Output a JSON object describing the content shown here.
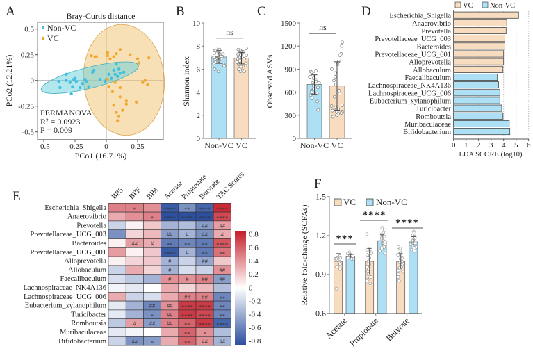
{
  "panels": {
    "A": "A",
    "B": "B",
    "C": "C",
    "D": "D",
    "E": "E",
    "F": "F"
  },
  "colors": {
    "non_vc_point": "#3fc0e0",
    "vc_point": "#f0a830",
    "non_vc_bar": "#aee0f5",
    "vc_bar": "#f8dcc0",
    "heat_neg": "#2c4f9e",
    "heat_zero": "#ffffff",
    "heat_pos": "#c41e2a"
  },
  "chart_data": [
    {
      "panel": "A",
      "type": "scatter",
      "title": "Bray-Curtis distance",
      "xlabel": "PCo1 (16.71%)",
      "ylabel": "PCo2 (12.21%)",
      "xticks": [
        "-0.5",
        "-0.25",
        "0",
        "0.25"
      ],
      "xtick_values": [
        -0.5,
        -0.25,
        0,
        0.25
      ],
      "yticks": [
        "0.5",
        "0.25",
        "0",
        "-0.25",
        "-0.5"
      ],
      "ytick_values": [
        0.5,
        0.25,
        0,
        -0.25,
        -0.5
      ],
      "xlim": [
        -0.55,
        0.46
      ],
      "ylim": [
        -0.57,
        0.56
      ],
      "legend": "top-left",
      "series": [
        {
          "name": "Non-VC",
          "points": [
            [
              -0.38,
              -0.01
            ],
            [
              -0.37,
              -0.07
            ],
            [
              -0.32,
              0.06
            ],
            [
              -0.32,
              0.0
            ],
            [
              -0.29,
              -0.02
            ],
            [
              -0.26,
              0.01
            ],
            [
              -0.25,
              0.02
            ],
            [
              -0.24,
              -0.01
            ],
            [
              -0.27,
              -0.06
            ],
            [
              -0.28,
              -0.13
            ],
            [
              -0.21,
              -0.07
            ],
            [
              -0.19,
              -0.03
            ],
            [
              -0.17,
              0.01
            ],
            [
              -0.16,
              -0.01
            ],
            [
              -0.14,
              -0.06
            ],
            [
              -0.11,
              0.08
            ],
            [
              -0.1,
              0.1
            ],
            [
              -0.05,
              0.01
            ],
            [
              -0.01,
              -0.01
            ],
            [
              0.0,
              0.01
            ],
            [
              0.02,
              0.06
            ],
            [
              0.04,
              0.02
            ],
            [
              0.06,
              0.1
            ],
            [
              0.07,
              0.06
            ],
            [
              0.08,
              0.16
            ],
            [
              0.09,
              0.04
            ],
            [
              0.1,
              0.11
            ],
            [
              0.11,
              0.07
            ],
            [
              0.14,
              0.08
            ]
          ]
        },
        {
          "name": "VC",
          "points": [
            [
              -0.12,
              0.24
            ],
            [
              -0.09,
              0.23
            ],
            [
              -0.08,
              0.23
            ],
            [
              0.01,
              0.27
            ],
            [
              0.01,
              0.24
            ],
            [
              0.03,
              0.21
            ],
            [
              0.06,
              0.23
            ],
            [
              0.08,
              0.26
            ],
            [
              0.11,
              0.3
            ],
            [
              0.19,
              0.25
            ],
            [
              0.25,
              0.21
            ],
            [
              0.26,
              0.17
            ],
            [
              0.34,
              0.22
            ],
            [
              0.01,
              0.01
            ],
            [
              0.02,
              -0.06
            ],
            [
              0.05,
              -0.11
            ],
            [
              0.07,
              -0.02
            ],
            [
              0.11,
              -0.07
            ],
            [
              0.11,
              -0.16
            ],
            [
              0.16,
              -0.2
            ],
            [
              0.16,
              -0.23
            ],
            [
              0.13,
              -0.29
            ],
            [
              0.06,
              -0.24
            ],
            [
              0.08,
              -0.31
            ],
            [
              0.1,
              -0.35
            ],
            [
              0.09,
              -0.39
            ],
            [
              0.24,
              -0.21
            ],
            [
              0.29,
              -0.02
            ],
            [
              0.31,
              0.0
            ],
            [
              0.33,
              -0.04
            ]
          ]
        }
      ],
      "annotation": {
        "title": "PERMANOVA",
        "r2": "R² = 0.0923",
        "p": "P = 0.009"
      }
    },
    {
      "panel": "B",
      "type": "bar",
      "ylabel": "Shannon index",
      "categories": [
        "Non-VC",
        "VC"
      ],
      "ylim": [
        0,
        10
      ],
      "yticks": [
        "0",
        "2",
        "4",
        "6",
        "8",
        "10"
      ],
      "ytick_values": [
        0,
        2,
        4,
        6,
        8,
        10
      ],
      "means": [
        7.05,
        6.95
      ],
      "sd": [
        0.55,
        0.5
      ],
      "points": [
        [
          7.8,
          7.7,
          7.6,
          7.6,
          7.5,
          7.5,
          7.4,
          7.3,
          7.3,
          7.2,
          7.2,
          7.1,
          7.1,
          7.0,
          7.0,
          6.9,
          6.9,
          6.8,
          6.8,
          6.7,
          6.6,
          6.5,
          6.4,
          6.3,
          6.0,
          5.8
        ],
        [
          7.8,
          7.7,
          7.6,
          7.5,
          7.5,
          7.4,
          7.3,
          7.2,
          7.2,
          7.1,
          7.0,
          7.0,
          6.9,
          6.9,
          6.8,
          6.7,
          6.6,
          6.5,
          6.4,
          6.3,
          6.2,
          6.0,
          5.9,
          5.8,
          5.8
        ]
      ],
      "significance": "ns"
    },
    {
      "panel": "C",
      "type": "bar",
      "ylabel": "Observed ASVs",
      "categories": [
        "Non-VC",
        "VC"
      ],
      "ylim": [
        0,
        1500
      ],
      "yticks": [
        "0",
        "300",
        "600",
        "900",
        "1200",
        "1500"
      ],
      "ytick_values": [
        0,
        300,
        600,
        900,
        1200,
        1500
      ],
      "means": [
        700,
        680
      ],
      "sd": [
        125,
        315
      ],
      "points": [
        [
          880,
          870,
          860,
          840,
          820,
          800,
          780,
          760,
          740,
          720,
          720,
          700,
          690,
          680,
          660,
          650,
          640,
          620,
          600,
          580,
          560,
          520,
          480,
          370
        ],
        [
          1250,
          1200,
          1100,
          1080,
          1000,
          960,
          900,
          850,
          800,
          750,
          700,
          620,
          580,
          540,
          430,
          420,
          400,
          380,
          370,
          360,
          350,
          340,
          330,
          320,
          300,
          280
        ]
      ],
      "significance": "ns"
    },
    {
      "panel": "D",
      "type": "bar",
      "orientation": "horizontal",
      "xlabel": "LDA SCORE (log10)",
      "xlim": [
        0,
        6
      ],
      "xticks": [
        "0",
        "1",
        "2",
        "3",
        "4",
        "5",
        "6"
      ],
      "legend": [
        {
          "name": "VC"
        },
        {
          "name": "Non-VC"
        }
      ],
      "categories": [
        "Escherichia_Shigella",
        "Anaerovibrio",
        "Prevotella",
        "Prevotellaceae_UCG_003",
        "Bacteroides",
        "Prevotellaceae_UCG_001",
        "Alloprevotella",
        "Allobaculum",
        "Faecalibaculum",
        "Lachnospiraceae_NK4A136",
        "Lachnospiraceae_UCG_006",
        "Eubacterium_xylanophilum",
        "Turicibacter",
        "Romboutsia",
        "Muribaculaceae",
        "Bifidobacterium"
      ],
      "values": [
        5.2,
        4.25,
        4.2,
        4.1,
        4.1,
        4.0,
        4.0,
        3.95,
        3.5,
        3.6,
        3.7,
        3.7,
        3.85,
        3.95,
        4.45,
        4.5
      ],
      "groups": [
        "VC",
        "VC",
        "VC",
        "VC",
        "VC",
        "VC",
        "VC",
        "VC",
        "Non-VC",
        "Non-VC",
        "Non-VC",
        "Non-VC",
        "Non-VC",
        "Non-VC",
        "Non-VC",
        "Non-VC"
      ]
    },
    {
      "panel": "E",
      "type": "heatmap",
      "columns": [
        "BPS",
        "BPF",
        "BPA",
        "Acetate",
        "Propionate",
        "Butyrate",
        "TAC Scores"
      ],
      "rows": [
        "Escherichia_Shigella",
        "Anaerovibrio",
        "Prevotella",
        "Prevotellaceae_UCG_003",
        "Bacteroides",
        "Prevotellaceae_UCG_001",
        "Alloprevotella",
        "Allobaculum",
        "Faecalibaculum",
        "Lachnospiraceae_NK4A136",
        "Lachnospiraceae_UCG_006",
        "Eubacterium_xylanophilum",
        "Turicibacter",
        "Romboutsia",
        "Muribaculaceae",
        "Bifidobacterium"
      ],
      "values": [
        [
          0.45,
          0.45,
          0.4,
          -0.75,
          -0.5,
          -0.7,
          0.75
        ],
        [
          0.3,
          0.4,
          0.45,
          -0.8,
          -0.8,
          -0.8,
          0.65
        ],
        [
          -0.2,
          0.05,
          0.2,
          -0.35,
          -0.3,
          -0.45,
          0.35
        ],
        [
          -0.5,
          0.15,
          0.25,
          -0.45,
          -0.35,
          -0.5,
          0.3
        ],
        [
          0.05,
          0.35,
          0.3,
          -0.6,
          -0.55,
          -0.6,
          0.6
        ],
        [
          0.35,
          0.05,
          0.2,
          -0.75,
          -0.35,
          -0.6,
          0.5
        ],
        [
          0.05,
          0.15,
          0.2,
          -0.35,
          -0.2,
          -0.4,
          0.2
        ],
        [
          -0.2,
          0.3,
          0.15,
          -0.35,
          -0.15,
          -0.2,
          0.4
        ],
        [
          -0.15,
          -0.25,
          -0.35,
          0.4,
          0.4,
          0.45,
          -0.45
        ],
        [
          -0.05,
          -0.1,
          0.0,
          0.3,
          0.15,
          0.25,
          -0.3
        ],
        [
          0.3,
          -0.2,
          -0.15,
          0.3,
          0.45,
          0.45,
          -0.55
        ],
        [
          -0.1,
          -0.35,
          -0.55,
          0.4,
          0.7,
          0.7,
          -0.55
        ],
        [
          -0.1,
          -0.35,
          -0.5,
          0.45,
          0.7,
          0.65,
          -0.55
        ],
        [
          -0.25,
          0.35,
          -0.45,
          0.45,
          0.55,
          0.7,
          -0.7
        ],
        [
          -0.1,
          -0.05,
          0.0,
          0.3,
          0.55,
          0.4,
          -0.3
        ],
        [
          -0.2,
          -0.5,
          -0.45,
          0.3,
          0.55,
          0.4,
          -0.35
        ]
      ],
      "sig": [
        [
          "",
          "*",
          "",
          "****",
          "**",
          "****",
          "****"
        ],
        [
          "",
          "",
          "*",
          "****",
          "****",
          "****",
          "****"
        ],
        [
          "",
          "",
          "",
          "",
          "",
          "##",
          "##"
        ],
        [
          "",
          "",
          "",
          "##",
          "#",
          "##",
          "#"
        ],
        [
          "",
          "##",
          "#",
          "**",
          "**",
          "**",
          "****"
        ],
        [
          "",
          "",
          "",
          "****",
          "#",
          "**",
          "**"
        ],
        [
          "",
          "",
          "",
          "#",
          "",
          "##",
          ""
        ],
        [
          "",
          "",
          "",
          "#",
          "",
          "",
          "##"
        ],
        [
          "",
          "",
          "",
          "#",
          "#",
          "##",
          "##"
        ],
        [
          "",
          "",
          "",
          "",
          "",
          "",
          ""
        ],
        [
          "",
          "",
          "",
          "",
          "##",
          "##",
          "**"
        ],
        [
          "",
          "",
          "##",
          "##",
          "****",
          "****",
          "**"
        ],
        [
          "",
          "",
          "*",
          "##",
          "****",
          "****",
          "**"
        ],
        [
          "",
          "#",
          "##",
          "##",
          "**",
          "****",
          "****"
        ],
        [
          "",
          "",
          "",
          "",
          "**",
          "*",
          ""
        ],
        [
          "",
          "##",
          "*",
          "",
          "**",
          "##",
          "##"
        ]
      ],
      "colorbar": {
        "range": [
          -0.8,
          0.8
        ],
        "ticks": [
          "0.8",
          "0.6",
          "0.4",
          "0.2",
          "0",
          "-0.2",
          "-0.4",
          "-0.6",
          "-0.8"
        ],
        "tick_values": [
          0.8,
          0.6,
          0.4,
          0.2,
          0,
          -0.2,
          -0.4,
          -0.6,
          -0.8
        ]
      }
    },
    {
      "panel": "F",
      "type": "bar",
      "ylabel": "Relative fold-change (SCFAs)",
      "categories": [
        "Acetate",
        "Propionate",
        "Butyrate"
      ],
      "ylim": [
        0.6,
        1.5
      ],
      "yticks": [
        "0.6",
        "0.9",
        "1.2",
        "1.5"
      ],
      "ytick_values": [
        0.6,
        0.9,
        1.2,
        1.5
      ],
      "legend": "top-left",
      "series": [
        {
          "name": "VC",
          "values": [
            1.0,
            1.0,
            1.0
          ],
          "sd": [
            0.06,
            0.1,
            0.06
          ],
          "points": [
            [
              1.04,
              1.03,
              1.03,
              1.02,
              1.02,
              1.01,
              1.0,
              0.99,
              0.98,
              0.96,
              0.94,
              0.79
            ],
            [
              1.21,
              1.1,
              1.09,
              1.08,
              1.07,
              1.06,
              1.05,
              1.03,
              1.01,
              1.0,
              0.98,
              0.96,
              0.94,
              0.92,
              0.9,
              0.88,
              0.87,
              0.86,
              0.85,
              0.83
            ],
            [
              1.11,
              1.1,
              1.08,
              1.07,
              1.06,
              1.05,
              1.03,
              1.02,
              1.0,
              0.99,
              0.98,
              0.97,
              0.96,
              0.95,
              0.94,
              0.93,
              0.92,
              0.9,
              0.88,
              0.85
            ]
          ]
        },
        {
          "name": "Non-VC",
          "values": [
            1.04,
            1.16,
            1.15
          ],
          "sd": [
            0.015,
            0.045,
            0.04
          ],
          "points": [
            [
              1.07,
              1.06,
              1.05,
              1.05,
              1.04,
              1.04,
              1.04,
              1.03,
              1.03,
              1.03,
              1.02,
              1.02
            ],
            [
              1.26,
              1.24,
              1.22,
              1.21,
              1.2,
              1.19,
              1.18,
              1.17,
              1.16,
              1.15,
              1.15,
              1.14,
              1.13,
              1.12,
              1.11,
              1.1,
              1.08,
              1.06
            ],
            [
              1.23,
              1.22,
              1.2,
              1.19,
              1.18,
              1.17,
              1.16,
              1.15,
              1.14,
              1.13,
              1.12,
              1.12,
              1.11,
              1.1,
              1.09,
              1.08
            ]
          ]
        }
      ],
      "significance": [
        "***",
        "****",
        "****"
      ]
    }
  ]
}
